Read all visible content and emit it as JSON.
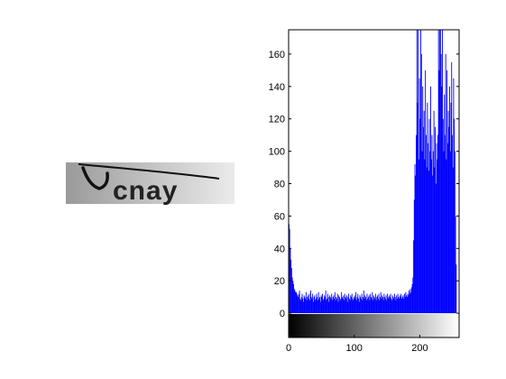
{
  "image_panel": {
    "captcha_text": "cnay",
    "background_gradient": [
      "#9a9a9a",
      "#ebebeb"
    ]
  },
  "chart_data": {
    "type": "bar",
    "x_range": [
      0,
      255
    ],
    "xlim": [
      0,
      260
    ],
    "ylim": [
      -15,
      175
    ],
    "x_ticks": [
      0,
      100,
      200
    ],
    "y_ticks": [
      0,
      20,
      40,
      60,
      80,
      100,
      120,
      140,
      160
    ],
    "bar_color": "#0000ff",
    "colorbar": "grayscale 0-255",
    "series": [
      {
        "values": [
          55,
          52,
          40,
          33,
          28,
          22,
          20,
          18,
          15,
          14,
          13,
          13,
          12,
          11,
          10,
          12,
          14,
          9,
          8,
          10,
          12,
          9,
          7,
          11,
          10,
          9,
          13,
          8,
          10,
          11,
          9,
          12,
          8,
          14,
          10,
          9,
          12,
          7,
          10,
          11,
          8,
          9,
          12,
          10,
          8,
          13,
          9,
          10,
          7,
          11,
          10,
          12,
          8,
          9,
          11,
          10,
          14,
          8,
          9,
          12,
          10,
          7,
          11,
          10,
          9,
          12,
          8,
          10,
          11,
          9,
          13,
          8,
          10,
          9,
          12,
          7,
          11,
          10,
          8,
          9,
          13,
          10,
          9,
          11,
          8,
          12,
          10,
          9,
          11,
          7,
          10,
          12,
          9,
          8,
          11,
          10,
          12,
          9,
          8,
          10,
          11,
          9,
          13,
          8,
          10,
          12,
          9,
          7,
          11,
          10,
          9,
          12,
          8,
          10,
          14,
          9,
          11,
          10,
          8,
          12,
          9,
          10,
          11,
          8,
          12,
          10,
          9,
          13,
          8,
          11,
          10,
          9,
          12,
          8,
          10,
          11,
          9,
          12,
          8,
          10,
          13,
          9,
          11,
          10,
          8,
          12,
          10,
          9,
          11,
          8,
          12,
          10,
          9,
          11,
          10,
          12,
          9,
          8,
          11,
          10,
          9,
          12,
          10,
          8,
          11,
          9,
          12,
          10,
          9,
          11,
          10,
          12,
          9,
          10,
          11,
          9,
          12,
          10,
          13,
          11,
          10,
          12,
          11,
          14,
          12,
          15,
          13,
          16,
          18,
          22,
          45,
          70,
          92,
          85,
          110,
          175,
          130,
          175,
          95,
          145,
          120,
          175,
          160,
          100,
          140,
          115,
          125,
          95,
          150,
          110,
          90,
          130,
          105,
          88,
          120,
          100,
          140,
          95,
          110,
          85,
          100,
          125,
          90,
          115,
          80,
          105,
          95,
          110,
          175,
          150,
          175,
          175,
          160,
          140,
          175,
          120,
          100,
          135,
          110,
          160,
          95,
          150,
          105,
          125,
          115,
          140,
          100,
          130,
          155,
          110,
          90,
          145,
          120,
          100,
          60,
          30
        ]
      }
    ]
  }
}
